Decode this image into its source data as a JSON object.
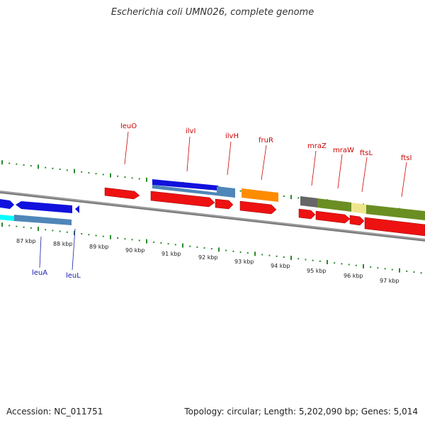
{
  "title": "Escherichia coli UMN026, complete genome",
  "footer": {
    "accession": "Accession: NC_011751",
    "summary": "Topology: circular; Length: 5,202,090 bp; Genes: 5,014"
  },
  "colors": {
    "axis": "#888888",
    "tick": "#2a8a2a",
    "label_top": "#cc0000",
    "label_bottom": "#1a1aaa",
    "cds_red": "#ee1111",
    "cds_blue": "#1111dd",
    "steel_blue": "#4f86b8",
    "orange": "#ff8c00",
    "olive": "#6b8e23",
    "khaki": "#eee68c",
    "dim_gray": "#666666",
    "cyan": "#00ffff"
  },
  "scale_ticks": [
    {
      "label": "87 kbp",
      "kbp": 87
    },
    {
      "label": "88 kbp",
      "kbp": 88
    },
    {
      "label": "89 kbp",
      "kbp": 89
    },
    {
      "label": "90 kbp",
      "kbp": 90
    },
    {
      "label": "91 kbp",
      "kbp": 91
    },
    {
      "label": "92 kbp",
      "kbp": 92
    },
    {
      "label": "93 kbp",
      "kbp": 93
    },
    {
      "label": "94 kbp",
      "kbp": 94
    },
    {
      "label": "95 kbp",
      "kbp": 95
    },
    {
      "label": "96 kbp",
      "kbp": 96
    },
    {
      "label": "97 kbp",
      "kbp": 97
    }
  ],
  "genes_top": [
    {
      "name": "leuO"
    },
    {
      "name": "ilvI"
    },
    {
      "name": "ilvH"
    },
    {
      "name": "fruR"
    },
    {
      "name": "mraZ"
    },
    {
      "name": "mraW"
    },
    {
      "name": "ftsL"
    },
    {
      "name": "ftsI"
    }
  ],
  "genes_bottom": [
    {
      "name": "leuA"
    },
    {
      "name": "leuL"
    }
  ]
}
